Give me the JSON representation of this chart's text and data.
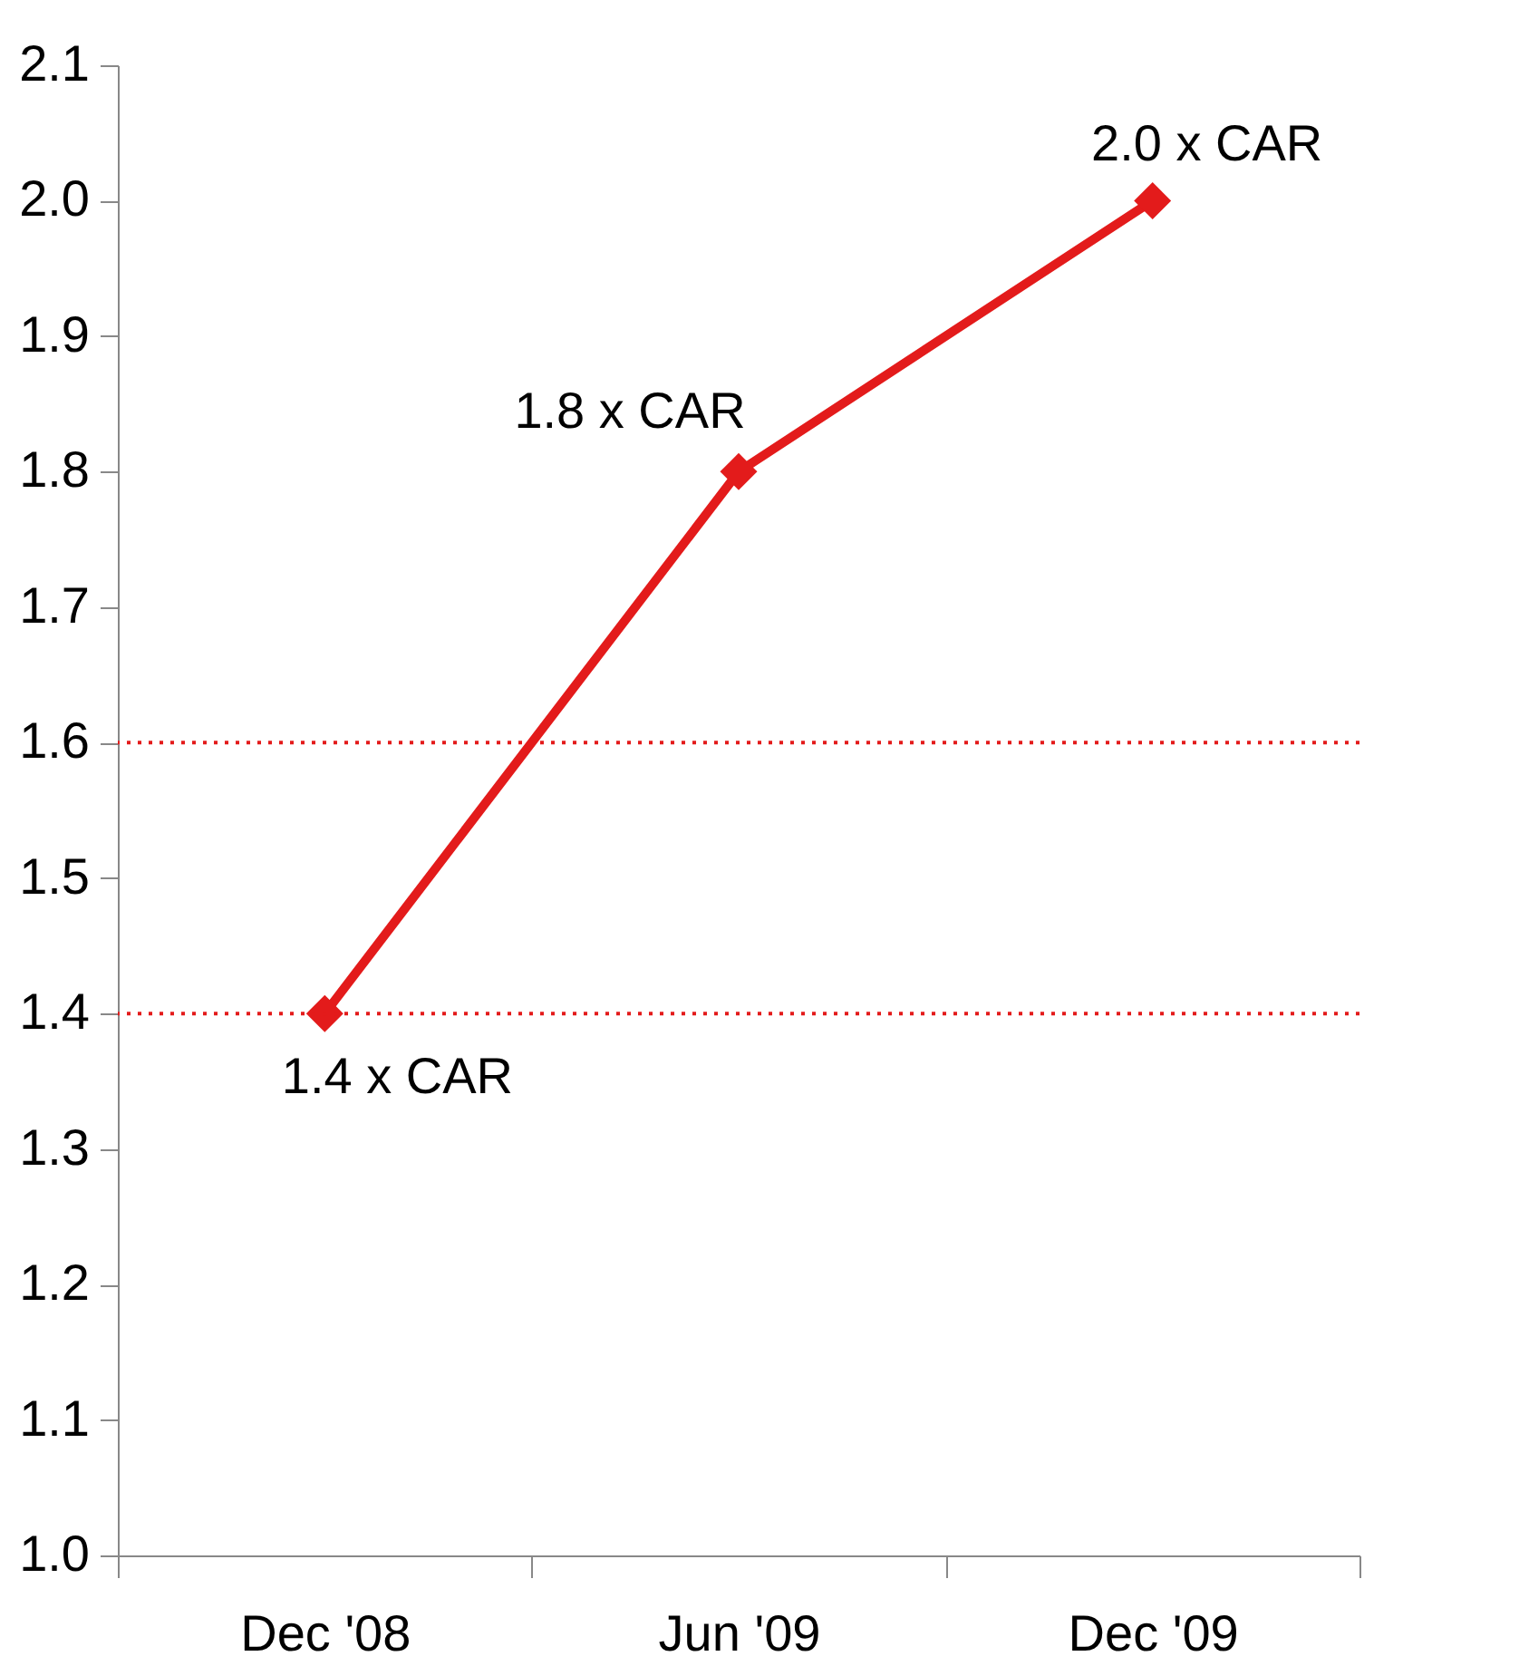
{
  "chart_data": {
    "type": "line",
    "categories": [
      "Dec '08",
      "Jun '09",
      "Dec '09"
    ],
    "series": [
      {
        "color": "#e31b1b",
        "values": [
          1.4,
          1.8,
          2.0
        ],
        "value_labels": [
          "1.4 x CAR",
          "1.8 x CAR",
          "2.0 x CAR"
        ]
      }
    ],
    "ylim": [
      1.0,
      2.1
    ],
    "yticks": [
      {
        "value": 1.0,
        "label": "1.0"
      },
      {
        "value": 1.1,
        "label": "1.1"
      },
      {
        "value": 1.2,
        "label": "1.2"
      },
      {
        "value": 1.3,
        "label": "1.3"
      },
      {
        "value": 1.4,
        "label": "1.4"
      },
      {
        "value": 1.5,
        "label": "1.5"
      },
      {
        "value": 1.6,
        "label": "1.6"
      },
      {
        "value": 1.7,
        "label": "1.7"
      },
      {
        "value": 1.8,
        "label": "1.8"
      },
      {
        "value": 1.9,
        "label": "1.9"
      },
      {
        "value": 2.0,
        "label": "2.0"
      },
      {
        "value": 2.1,
        "label": "2.1"
      }
    ],
    "ref_lines": [
      {
        "axis": "y",
        "value": 1.6,
        "color": "#e31b1b",
        "line_style": "dotted"
      },
      {
        "axis": "y",
        "value": 1.4,
        "color": "#e31b1b",
        "line_style": "dotted"
      }
    ],
    "marker": "diamond",
    "line_style": "solid",
    "grid": false
  }
}
